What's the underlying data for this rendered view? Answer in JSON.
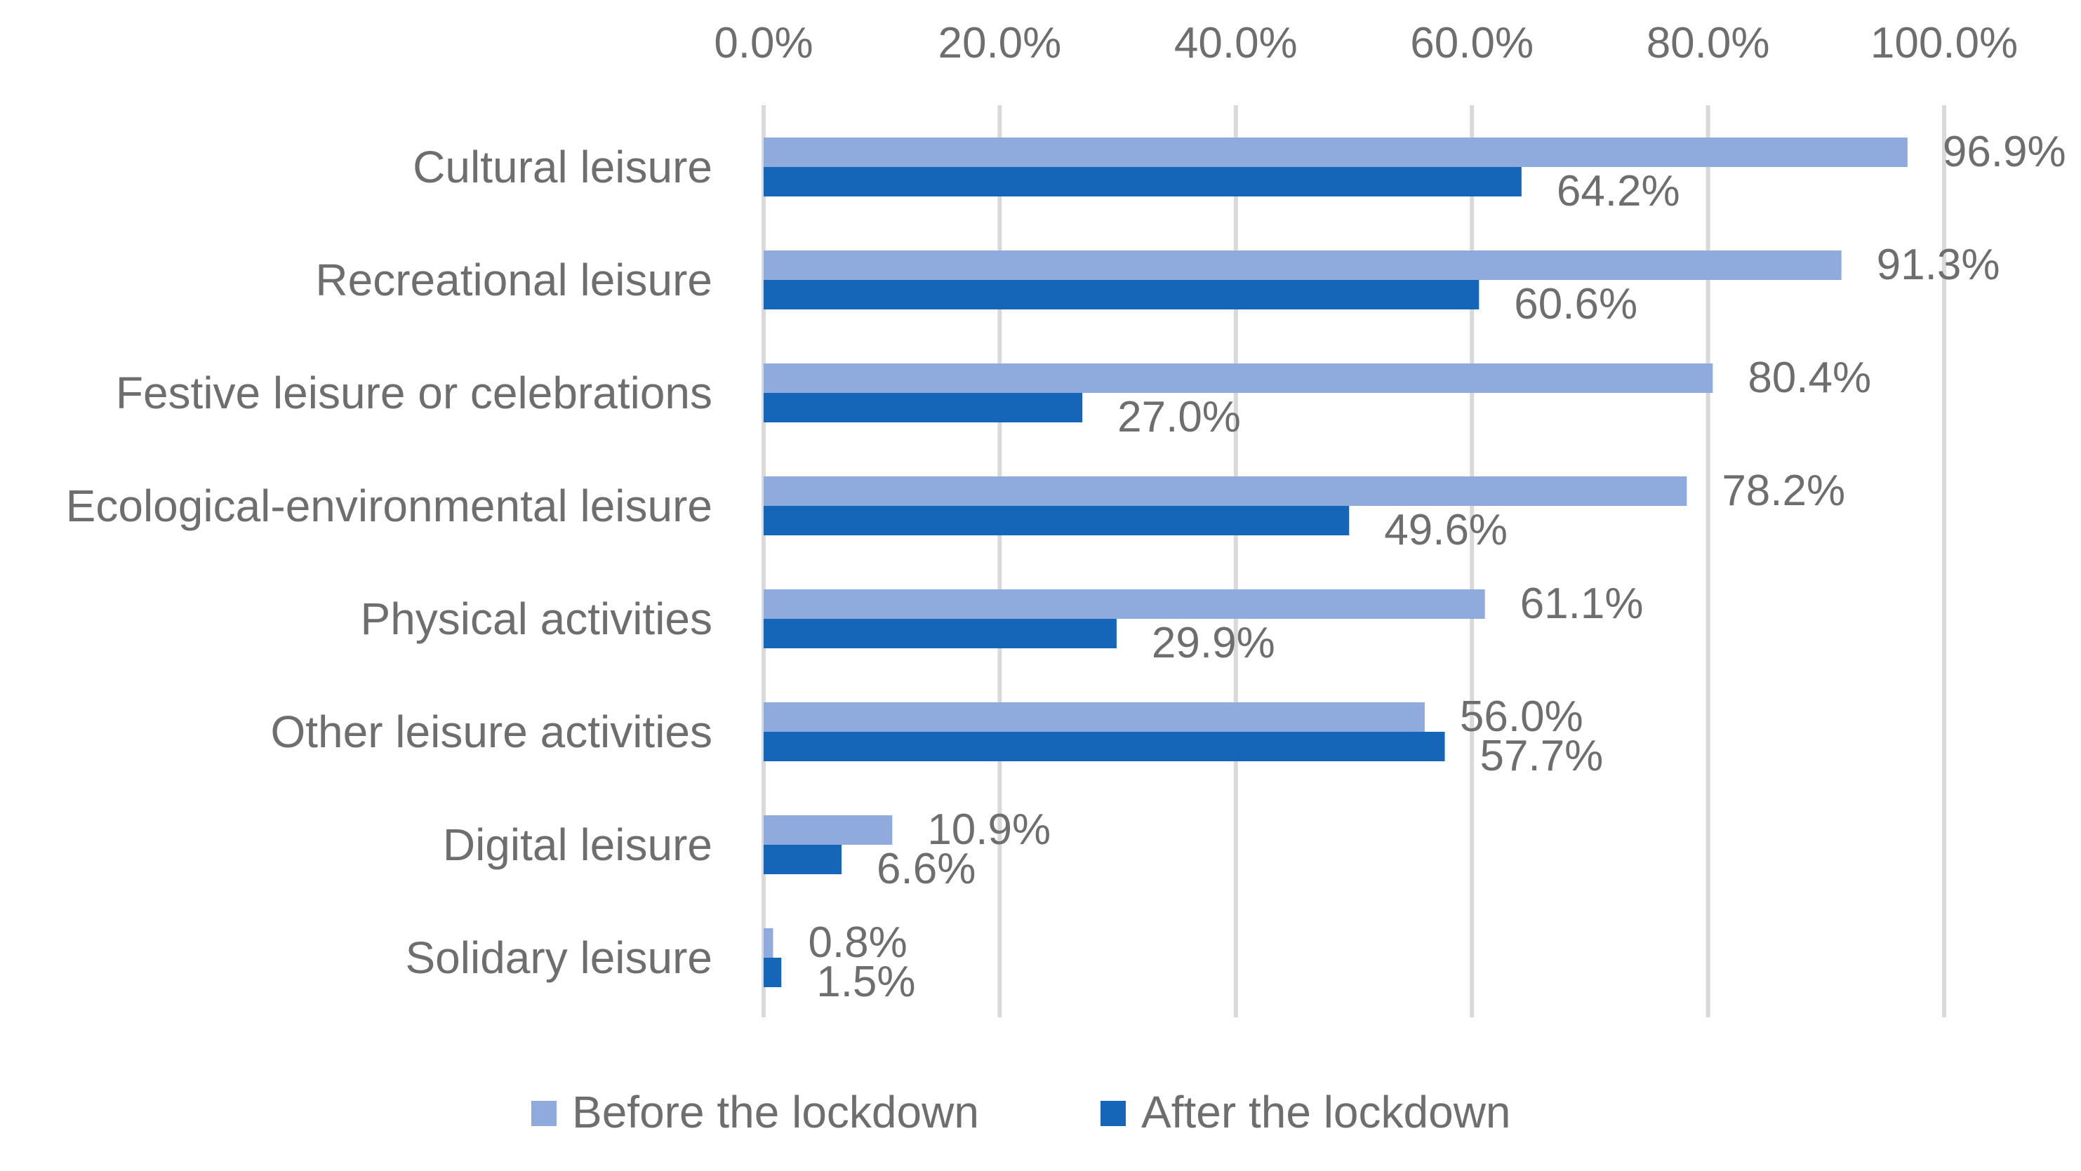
{
  "chart_data": {
    "type": "bar",
    "orientation": "horizontal",
    "categories": [
      "Cultural leisure",
      "Recreational leisure",
      "Festive leisure or celebrations",
      "Ecological-environmental leisure",
      "Physical activities",
      "Other leisure activities",
      "Digital leisure",
      "Solidary leisure"
    ],
    "series": [
      {
        "name": "Before the lockdown",
        "color": "#8faadc",
        "values": [
          96.9,
          91.3,
          80.4,
          78.2,
          61.1,
          56.0,
          10.9,
          0.8
        ],
        "labels": [
          "96.9%",
          "91.3%",
          "80.4%",
          "78.2%",
          "61.1%",
          "56.0%",
          "10.9%",
          "0.8%"
        ]
      },
      {
        "name": "After the lockdown",
        "color": "#1565b8",
        "values": [
          64.2,
          60.6,
          27.0,
          49.6,
          29.9,
          57.7,
          6.6,
          1.5
        ],
        "labels": [
          "64.2%",
          "60.6%",
          "27.0%",
          "49.6%",
          "29.9%",
          "57.7%",
          "6.6%",
          "1.5%"
        ]
      }
    ],
    "xlim": [
      0,
      100
    ],
    "xticks": [
      0,
      20,
      40,
      60,
      80,
      100
    ],
    "xtick_labels": [
      "0.0%",
      "20.0%",
      "40.0%",
      "60.0%",
      "80.0%",
      "100.0%"
    ],
    "x_axis_position": "top",
    "grid": true,
    "title": "",
    "xlabel": "",
    "ylabel": "",
    "legend_position": "bottom"
  }
}
